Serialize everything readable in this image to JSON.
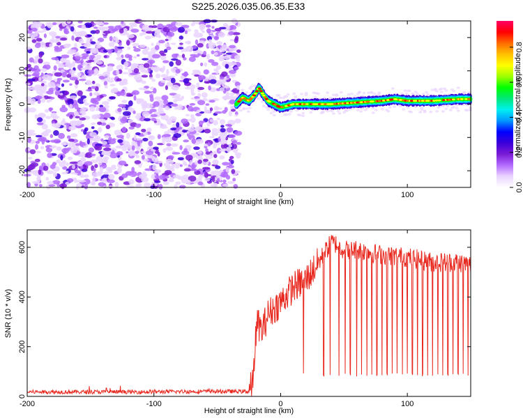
{
  "page": {
    "title": "S225.2026.035.06.35.E33"
  },
  "chart_data": [
    {
      "type": "heatmap",
      "title": "S225.2026.035.06.35.E33",
      "xlabel": "Height of straight line (km)",
      "ylabel": "Frequency (Hz)",
      "xlim": [
        -200,
        150
      ],
      "ylim": [
        -25,
        25
      ],
      "x_ticks": [
        -200,
        -100,
        0,
        100
      ],
      "x_tick_labels": [
        "-200",
        "-100",
        "0",
        "100"
      ],
      "y_ticks": [
        -20,
        -10,
        0,
        10,
        20
      ],
      "y_tick_labels": [
        "-20",
        "-10",
        "0",
        "10",
        "20"
      ],
      "noise_region_x": [
        -200,
        -33
      ],
      "signal_track": {
        "x": [
          -35,
          -30,
          -25,
          -20,
          -17,
          -14,
          -10,
          -5,
          0,
          10,
          20,
          40,
          60,
          80,
          90,
          100,
          120,
          140,
          150
        ],
        "frequency_hz": [
          0,
          2,
          1,
          3,
          5,
          3,
          1,
          0,
          -1,
          0,
          0,
          0,
          0.5,
          1,
          1.5,
          1,
          1,
          1.5,
          1.5
        ]
      },
      "colorbar": {
        "label": "Normalized spectral amplitude",
        "range": [
          0,
          0.95
        ],
        "ticks": [
          0,
          0.2,
          0.4,
          0.6,
          0.8
        ],
        "tick_labels": [
          "0.0",
          "0.2",
          "0.4",
          "0.6",
          "0.8"
        ],
        "colors": [
          "#ffffff",
          "#e9d4ff",
          "#b36bff",
          "#7a1bd6",
          "#3c00d9",
          "#0000ff",
          "#0099ff",
          "#00f0f0",
          "#00e87a",
          "#00ff00",
          "#a0ff00",
          "#ffff00",
          "#ffc000",
          "#ff6a00",
          "#ff0000",
          "#ff0066"
        ]
      }
    },
    {
      "type": "line",
      "xlabel": "Height of straight line (km)",
      "ylabel": "SNR (10 * v/v)",
      "xlim": [
        -200,
        150
      ],
      "ylim": [
        0,
        670
      ],
      "x_ticks": [
        -200,
        -100,
        0,
        100
      ],
      "x_tick_labels": [
        "-200",
        "-100",
        "0",
        "100"
      ],
      "y_ticks": [
        0,
        200,
        400,
        600
      ],
      "y_tick_labels": [
        "0",
        "200",
        "400",
        "600"
      ],
      "color": "#e8281e",
      "series": [
        {
          "name": "SNR",
          "x": [
            -200,
            -120,
            -60,
            -25,
            -22,
            -20,
            -18,
            -15,
            -10,
            0,
            10,
            20,
            30,
            35,
            40,
            45,
            50,
            60,
            80,
            100,
            120,
            140,
            150
          ],
          "values": [
            18,
            18,
            20,
            20,
            50,
            220,
            300,
            260,
            330,
            380,
            440,
            470,
            540,
            580,
            620,
            610,
            590,
            590,
            570,
            560,
            540,
            540,
            530
          ],
          "dropouts_x": [
            18,
            34,
            39,
            46,
            51,
            55,
            60,
            64,
            68,
            72,
            76,
            80,
            84,
            88,
            92,
            96,
            100,
            104,
            108,
            112,
            116,
            120,
            124,
            128,
            132,
            136,
            140,
            144,
            148
          ],
          "dropout_floor": 80
        }
      ]
    }
  ]
}
